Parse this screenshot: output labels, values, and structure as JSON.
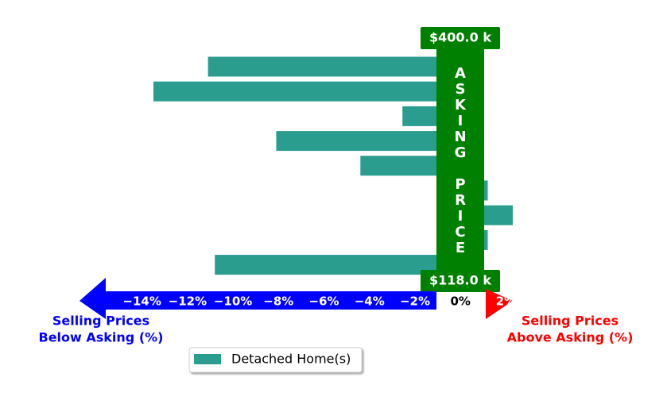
{
  "chart_data": {
    "type": "barh",
    "categories": [
      null,
      null,
      null,
      null,
      null,
      null,
      null,
      null,
      null
    ],
    "series": [
      {
        "name": "Detached Home(s)",
        "color": "#2a9d8f",
        "values": [
          -11.1,
          -13.5,
          -2.55,
          -8.1,
          -4.4,
          1.2,
          2.3,
          1.2,
          -10.8
        ]
      }
    ],
    "xlim": [
      -16.75,
      2.3
    ],
    "xticks": [
      {
        "value": -14,
        "label": "−14%"
      },
      {
        "value": -12,
        "label": "−12%"
      },
      {
        "value": -10,
        "label": "−10%"
      },
      {
        "value": -8,
        "label": "−8%"
      },
      {
        "value": -6,
        "label": "−6%"
      },
      {
        "value": -4,
        "label": "−4%"
      },
      {
        "value": -2,
        "label": "−2%"
      },
      {
        "value": 0,
        "label": "0%"
      },
      {
        "value": 2,
        "label": "2%"
      }
    ],
    "price_top": "$400.0 k",
    "price_bottom": "$118.0 k",
    "band_label": "ASKING PRICE",
    "band_color": "#008000",
    "below_label": [
      "Selling Prices",
      "Below Asking (%)"
    ],
    "below_color": "#0000ff",
    "above_label": [
      "Selling Prices",
      "Above Asking (%)"
    ],
    "above_color": "#ff0000"
  }
}
